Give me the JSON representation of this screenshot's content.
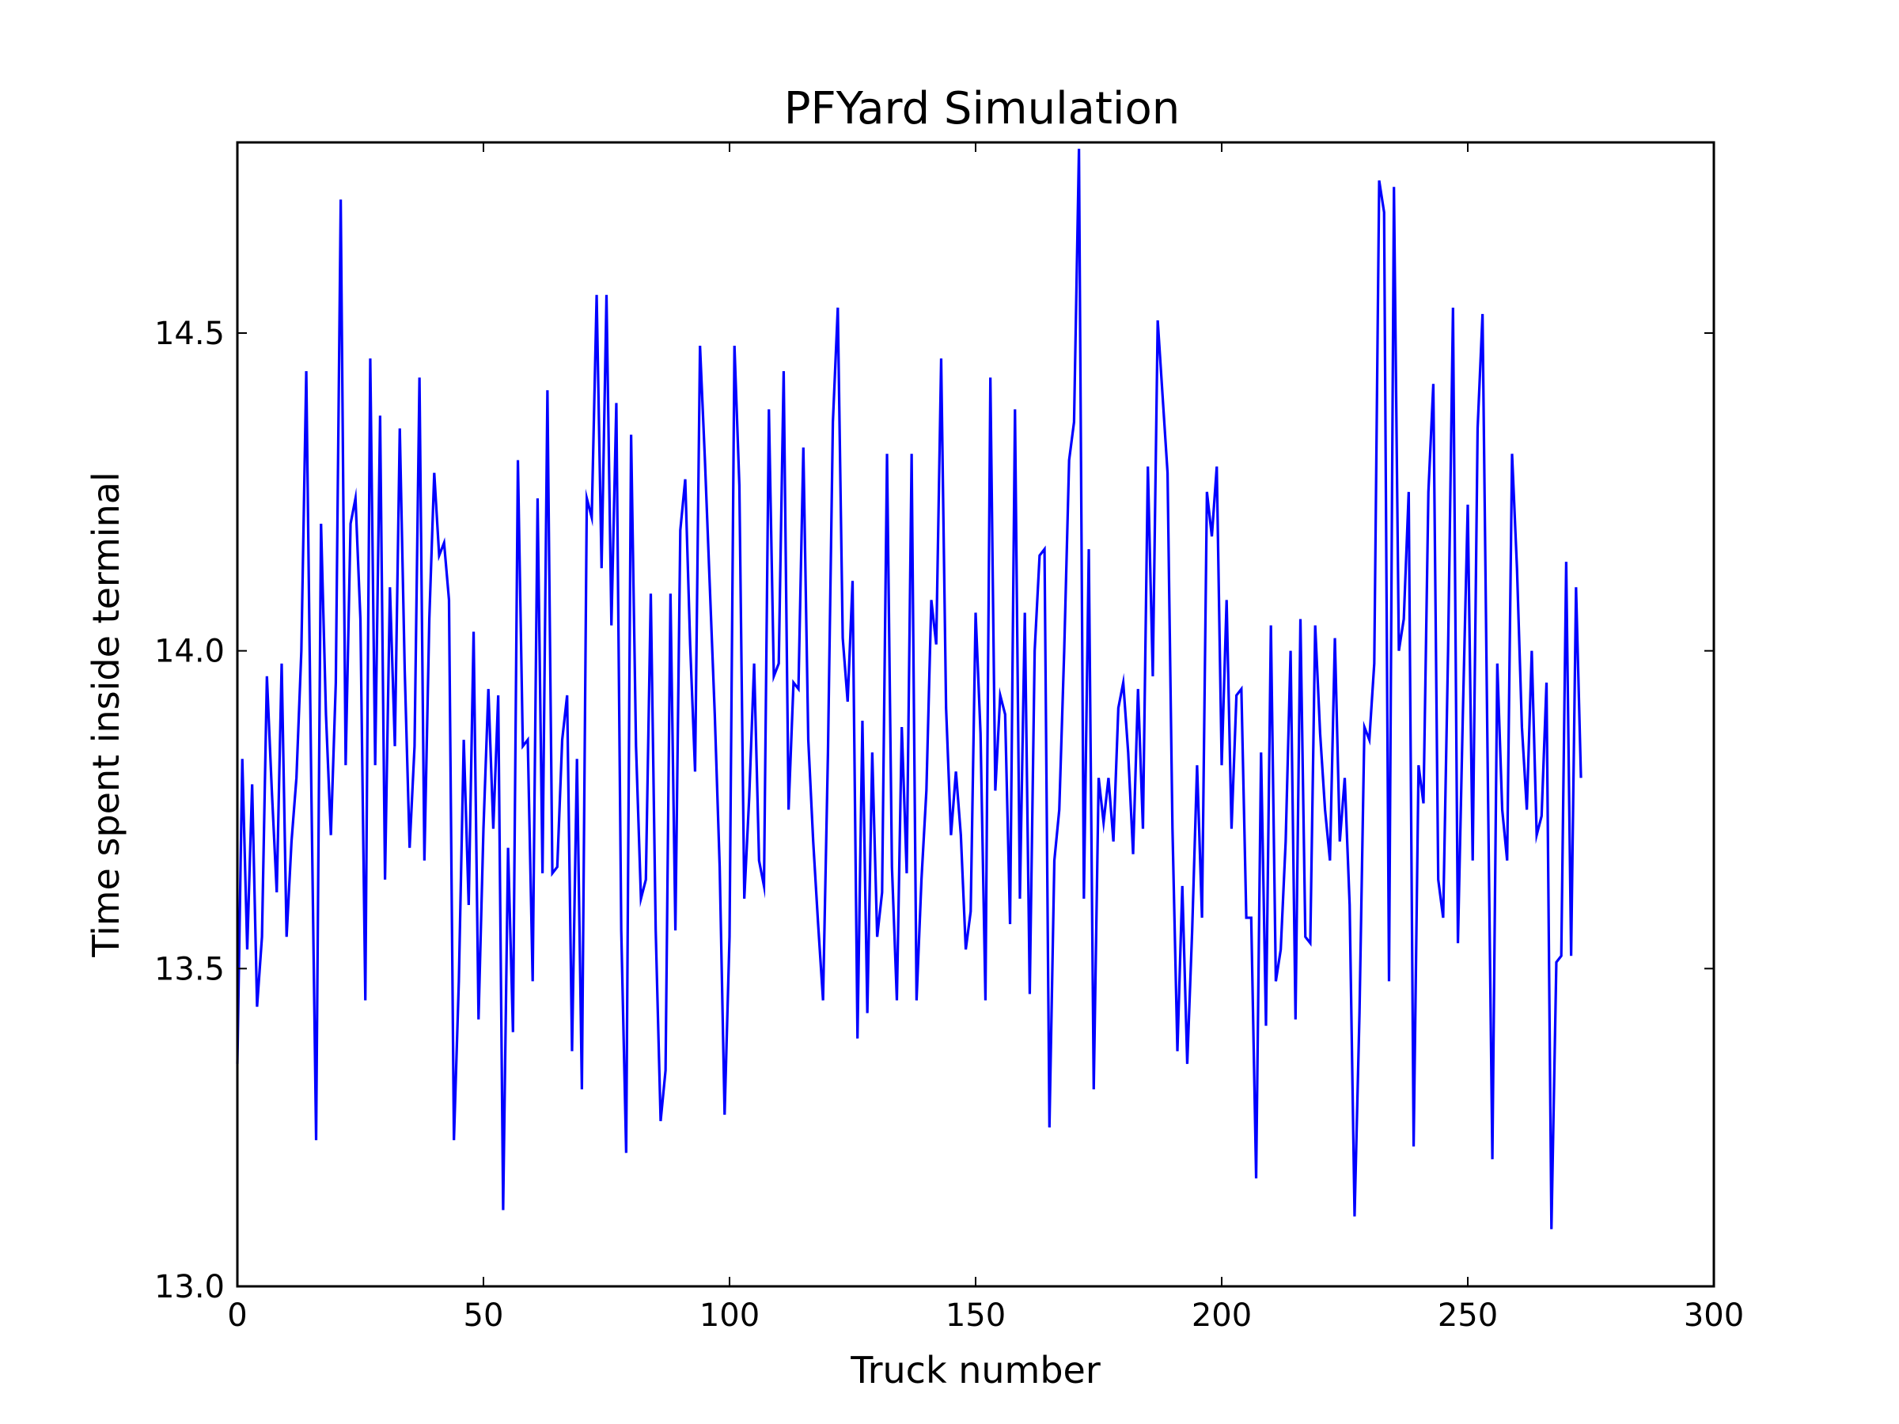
{
  "chart_data": {
    "type": "line",
    "title": "PFYard Simulation",
    "xlabel": "Truck number",
    "ylabel": "Time spent inside terminal",
    "xlim": [
      0,
      300
    ],
    "ylim": [
      13.0,
      14.8
    ],
    "xticks": [
      0,
      50,
      100,
      150,
      200,
      250,
      300
    ],
    "xtick_labels": [
      "0",
      "50",
      "100",
      "150",
      "200",
      "250",
      "300"
    ],
    "yticks": [
      13.0,
      13.5,
      14.0,
      14.5
    ],
    "ytick_labels": [
      "13.0",
      "13.5",
      "14.0",
      "14.5"
    ],
    "grid": false,
    "series": [
      {
        "color": "#0000ff",
        "x_start": 0,
        "x_step": 1,
        "values": [
          13.35,
          13.83,
          13.53,
          13.79,
          13.44,
          13.55,
          13.96,
          13.78,
          13.62,
          13.98,
          13.55,
          13.7,
          13.8,
          14.0,
          14.44,
          13.8,
          13.23,
          14.2,
          13.9,
          13.71,
          13.95,
          14.71,
          13.82,
          14.2,
          14.24,
          14.05,
          13.45,
          14.46,
          13.82,
          14.37,
          13.64,
          14.1,
          13.85,
          14.35,
          13.97,
          13.69,
          13.85,
          14.43,
          13.67,
          14.05,
          14.28,
          14.15,
          14.17,
          14.08,
          13.23,
          13.48,
          13.86,
          13.6,
          14.03,
          13.42,
          13.72,
          13.94,
          13.72,
          13.93,
          13.12,
          13.69,
          13.4,
          14.3,
          13.85,
          13.86,
          13.48,
          14.24,
          13.65,
          14.41,
          13.65,
          13.66,
          13.86,
          13.93,
          13.37,
          13.83,
          13.31,
          14.24,
          14.21,
          14.56,
          14.13,
          14.56,
          14.04,
          14.39,
          13.56,
          13.21,
          14.34,
          13.85,
          13.61,
          13.64,
          14.09,
          13.56,
          13.26,
          13.34,
          14.09,
          13.56,
          14.19,
          14.27,
          14.01,
          13.81,
          14.48,
          14.3,
          14.1,
          13.9,
          13.66,
          13.27,
          13.55,
          14.48,
          14.26,
          13.61,
          13.77,
          13.98,
          13.67,
          13.63,
          14.38,
          13.96,
          13.98,
          14.44,
          13.75,
          13.95,
          13.94,
          14.32,
          13.86,
          13.7,
          13.57,
          13.45,
          13.84,
          14.36,
          14.54,
          14.02,
          13.92,
          14.11,
          13.39,
          13.89,
          13.43,
          13.84,
          13.55,
          13.62,
          14.31,
          13.66,
          13.45,
          13.88,
          13.65,
          14.31,
          13.45,
          13.64,
          13.78,
          14.08,
          14.01,
          14.46,
          13.91,
          13.71,
          13.81,
          13.71,
          13.53,
          13.59,
          14.06,
          13.87,
          13.45,
          14.43,
          13.78,
          13.93,
          13.9,
          13.57,
          14.38,
          13.61,
          14.06,
          13.46,
          14.0,
          14.15,
          14.16,
          13.25,
          13.67,
          13.75,
          14.0,
          14.3,
          14.36,
          14.79,
          13.61,
          14.16,
          13.31,
          13.8,
          13.73,
          13.8,
          13.7,
          13.91,
          13.95,
          13.84,
          13.68,
          13.94,
          13.72,
          14.29,
          13.96,
          14.52,
          14.4,
          14.28,
          13.72,
          13.37,
          13.63,
          13.35,
          13.56,
          13.82,
          13.58,
          14.25,
          14.18,
          14.29,
          13.82,
          14.08,
          13.72,
          13.93,
          13.94,
          13.58,
          13.58,
          13.17,
          13.84,
          13.41,
          14.04,
          13.48,
          13.53,
          13.7,
          14.0,
          13.42,
          14.05,
          13.55,
          13.54,
          14.04,
          13.87,
          13.75,
          13.67,
          14.02,
          13.7,
          13.8,
          13.6,
          13.11,
          13.43,
          13.88,
          13.86,
          13.98,
          14.74,
          14.69,
          13.48,
          14.73,
          14.0,
          14.05,
          14.25,
          13.22,
          13.82,
          13.76,
          14.25,
          14.42,
          13.64,
          13.58,
          14.0,
          14.54,
          13.54,
          13.9,
          14.23,
          13.67,
          14.35,
          14.53,
          13.85,
          13.2,
          13.98,
          13.75,
          13.67,
          14.31,
          14.13,
          13.88,
          13.75,
          14.0,
          13.71,
          13.74,
          13.95,
          13.09,
          13.51,
          13.52,
          14.14,
          13.52,
          14.1,
          13.8
        ]
      }
    ]
  }
}
